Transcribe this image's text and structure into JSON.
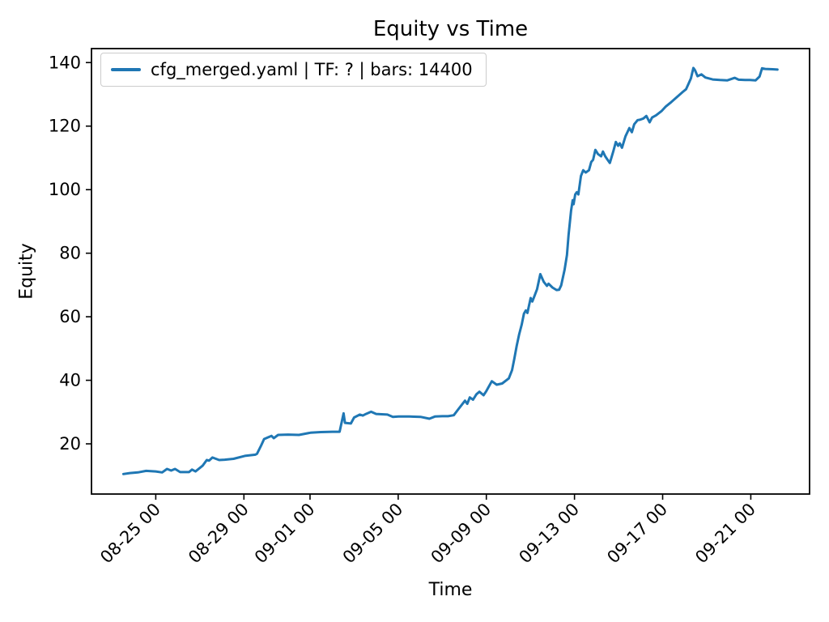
{
  "colors": {
    "accent": "#1f77b4",
    "text": "#000000",
    "legend_border": "#cccccc",
    "axes_edge": "#000000",
    "background": "#ffffff"
  },
  "chart_data": {
    "type": "line",
    "title": "Equity vs Time",
    "xlabel": "Time",
    "ylabel": "Equity",
    "grid": false,
    "legend_position": "upper left",
    "xlim": [
      "08-22 02:00",
      "09-23 16:00"
    ],
    "ylim": [
      4.2,
      144.4
    ],
    "y_ticks": [
      20,
      40,
      60,
      80,
      100,
      120,
      140
    ],
    "x_ticks": [
      {
        "time": "08-25 00:00",
        "label": "08-25 00"
      },
      {
        "time": "08-29 00:00",
        "label": "08-29 00"
      },
      {
        "time": "09-01 00:00",
        "label": "09-01 00"
      },
      {
        "time": "09-05 00:00",
        "label": "09-05 00"
      },
      {
        "time": "09-09 00:00",
        "label": "09-09 00"
      },
      {
        "time": "09-13 00:00",
        "label": "09-13 00"
      },
      {
        "time": "09-17 00:00",
        "label": "09-17 00"
      },
      {
        "time": "09-21 00:00",
        "label": "09-21 00"
      }
    ],
    "series": [
      {
        "name": "cfg_merged.yaml | TF: ? | bars: 14400",
        "color": "#1f77b4",
        "points": [
          [
            "08-23 12:45",
            10.5
          ],
          [
            "08-23 19:45",
            10.8
          ],
          [
            "08-24 04:30",
            11.0
          ],
          [
            "08-24 13:30",
            11.5
          ],
          [
            "08-25 00:00",
            11.3
          ],
          [
            "08-25 07:00",
            11.0
          ],
          [
            "08-25 12:15",
            12.1
          ],
          [
            "08-25 16:45",
            11.6
          ],
          [
            "08-25 21:00",
            12.1
          ],
          [
            "08-26 02:30",
            11.1
          ],
          [
            "08-26 12:15",
            11.1
          ],
          [
            "08-26 15:30",
            11.9
          ],
          [
            "08-26 19:15",
            11.3
          ],
          [
            "08-27 03:00",
            13.1
          ],
          [
            "08-27 07:30",
            14.9
          ],
          [
            "08-27 10:00",
            14.7
          ],
          [
            "08-27 13:45",
            15.7
          ],
          [
            "08-27 21:00",
            14.9
          ],
          [
            "08-28 03:00",
            15.0
          ],
          [
            "08-28 12:45",
            15.3
          ],
          [
            "08-29 01:00",
            16.2
          ],
          [
            "08-29 12:30",
            16.6
          ],
          [
            "08-29 14:15",
            16.9
          ],
          [
            "08-29 18:45",
            19.5
          ],
          [
            "08-29 22:00",
            21.5
          ],
          [
            "08-30 01:45",
            22.0
          ],
          [
            "08-30 06:00",
            22.5
          ],
          [
            "08-30 08:30",
            21.8
          ],
          [
            "08-30 13:15",
            22.8
          ],
          [
            "08-31 00:00",
            22.9
          ],
          [
            "08-31 12:00",
            22.8
          ],
          [
            "09-01 00:30",
            23.5
          ],
          [
            "09-01 11:45",
            23.7
          ],
          [
            "09-02 00:15",
            23.8
          ],
          [
            "09-02 08:15",
            23.8
          ],
          [
            "09-02 12:30",
            29.6
          ],
          [
            "09-02 14:00",
            26.6
          ],
          [
            "09-02 20:30",
            26.4
          ],
          [
            "09-03 00:00",
            28.3
          ],
          [
            "09-03 06:15",
            29.2
          ],
          [
            "09-03 09:30",
            28.9
          ],
          [
            "09-03 13:00",
            29.4
          ],
          [
            "09-03 18:30",
            30.1
          ],
          [
            "09-04 00:00",
            29.4
          ],
          [
            "09-04 12:15",
            29.2
          ],
          [
            "09-04 18:15",
            28.5
          ],
          [
            "09-05 00:30",
            28.6
          ],
          [
            "09-05 12:00",
            28.6
          ],
          [
            "09-06 00:15",
            28.5
          ],
          [
            "09-06 10:00",
            27.9
          ],
          [
            "09-06 16:00",
            28.6
          ],
          [
            "09-07 00:00",
            28.7
          ],
          [
            "09-07 06:15",
            28.7
          ],
          [
            "09-07 12:30",
            29.0
          ],
          [
            "09-07 16:45",
            30.6
          ],
          [
            "09-07 21:15",
            32.3
          ],
          [
            "09-08 00:45",
            33.6
          ],
          [
            "09-08 03:15",
            32.6
          ],
          [
            "09-08 06:00",
            34.6
          ],
          [
            "09-08 09:30",
            33.9
          ],
          [
            "09-08 13:15",
            35.6
          ],
          [
            "09-08 16:30",
            36.4
          ],
          [
            "09-08 21:00",
            35.3
          ],
          [
            "09-09 00:00",
            36.6
          ],
          [
            "09-09 06:00",
            39.7
          ],
          [
            "09-09 11:15",
            38.6
          ],
          [
            "09-09 17:15",
            39.0
          ],
          [
            "09-10 00:30",
            40.6
          ],
          [
            "09-10 04:00",
            43.2
          ],
          [
            "09-10 06:30",
            46.8
          ],
          [
            "09-10 09:00",
            50.8
          ],
          [
            "09-10 11:45",
            54.5
          ],
          [
            "09-10 14:30",
            57.5
          ],
          [
            "09-10 17:00",
            61.0
          ],
          [
            "09-10 19:00",
            62.0
          ],
          [
            "09-10 20:45",
            61.2
          ],
          [
            "09-10 22:30",
            63.6
          ],
          [
            "09-11 00:15",
            65.9
          ],
          [
            "09-11 02:00",
            64.8
          ],
          [
            "09-11 04:30",
            66.6
          ],
          [
            "09-11 07:15",
            68.7
          ],
          [
            "09-11 10:45",
            73.4
          ],
          [
            "09-11 14:30",
            71.0
          ],
          [
            "09-11 18:00",
            69.7
          ],
          [
            "09-11 19:45",
            70.4
          ],
          [
            "09-12 00:00",
            69.2
          ],
          [
            "09-12 04:30",
            68.4
          ],
          [
            "09-12 07:15",
            68.5
          ],
          [
            "09-12 09:30",
            69.9
          ],
          [
            "09-12 13:15",
            74.8
          ],
          [
            "09-12 15:45",
            79.4
          ],
          [
            "09-12 17:30",
            85.7
          ],
          [
            "09-12 20:15",
            93.4
          ],
          [
            "09-12 22:00",
            96.7
          ],
          [
            "09-12 23:00",
            95.4
          ],
          [
            "09-13 00:45",
            98.5
          ],
          [
            "09-13 02:30",
            99.2
          ],
          [
            "09-13 04:15",
            98.5
          ],
          [
            "09-13 07:00",
            104.3
          ],
          [
            "09-13 09:30",
            106.1
          ],
          [
            "09-13 12:15",
            105.4
          ],
          [
            "09-13 15:45",
            106.1
          ],
          [
            "09-13 18:15",
            108.7
          ],
          [
            "09-13 20:15",
            109.4
          ],
          [
            "09-13 22:45",
            112.5
          ],
          [
            "09-14 01:30",
            111.2
          ],
          [
            "09-14 05:00",
            110.5
          ],
          [
            "09-14 07:00",
            112.0
          ],
          [
            "09-14 09:30",
            110.5
          ],
          [
            "09-14 12:00",
            109.4
          ],
          [
            "09-14 14:30",
            108.4
          ],
          [
            "09-14 18:15",
            112.0
          ],
          [
            "09-14 21:00",
            115.0
          ],
          [
            "09-14 23:30",
            113.8
          ],
          [
            "09-15 01:15",
            114.6
          ],
          [
            "09-15 03:45",
            113.2
          ],
          [
            "09-15 07:30",
            116.8
          ],
          [
            "09-15 10:00",
            118.3
          ],
          [
            "09-15 11:45",
            119.4
          ],
          [
            "09-15 14:30",
            118.1
          ],
          [
            "09-15 17:00",
            120.6
          ],
          [
            "09-15 20:45",
            121.9
          ],
          [
            "09-15 23:15",
            122.0
          ],
          [
            "09-16 03:00",
            122.4
          ],
          [
            "09-16 06:15",
            123.2
          ],
          [
            "09-16 09:45",
            121.2
          ],
          [
            "09-16 12:30",
            122.7
          ],
          [
            "09-16 16:45",
            123.4
          ],
          [
            "09-16 23:00",
            124.8
          ],
          [
            "09-17 03:30",
            126.2
          ],
          [
            "09-17 09:30",
            127.6
          ],
          [
            "09-17 15:45",
            129.2
          ],
          [
            "09-17 22:00",
            130.8
          ],
          [
            "09-18 01:30",
            131.6
          ],
          [
            "09-18 04:00",
            133.2
          ],
          [
            "09-18 06:45",
            135.0
          ],
          [
            "09-18 09:30",
            138.3
          ],
          [
            "09-18 11:15",
            137.6
          ],
          [
            "09-18 14:00",
            135.7
          ],
          [
            "09-18 18:15",
            136.3
          ],
          [
            "09-18 22:30",
            135.3
          ],
          [
            "09-19 06:30",
            134.7
          ],
          [
            "09-19 14:30",
            134.5
          ],
          [
            "09-19 22:30",
            134.4
          ],
          [
            "09-20 06:30",
            135.2
          ],
          [
            "09-20 10:45",
            134.6
          ],
          [
            "09-20 17:45",
            134.5
          ],
          [
            "09-20 23:00",
            134.5
          ],
          [
            "09-21 05:15",
            134.4
          ],
          [
            "09-21 09:30",
            135.6
          ],
          [
            "09-21 12:15",
            138.2
          ],
          [
            "09-21 15:45",
            138.0
          ],
          [
            "09-21 23:45",
            137.9
          ],
          [
            "09-22 05:00",
            137.8
          ]
        ]
      }
    ]
  }
}
